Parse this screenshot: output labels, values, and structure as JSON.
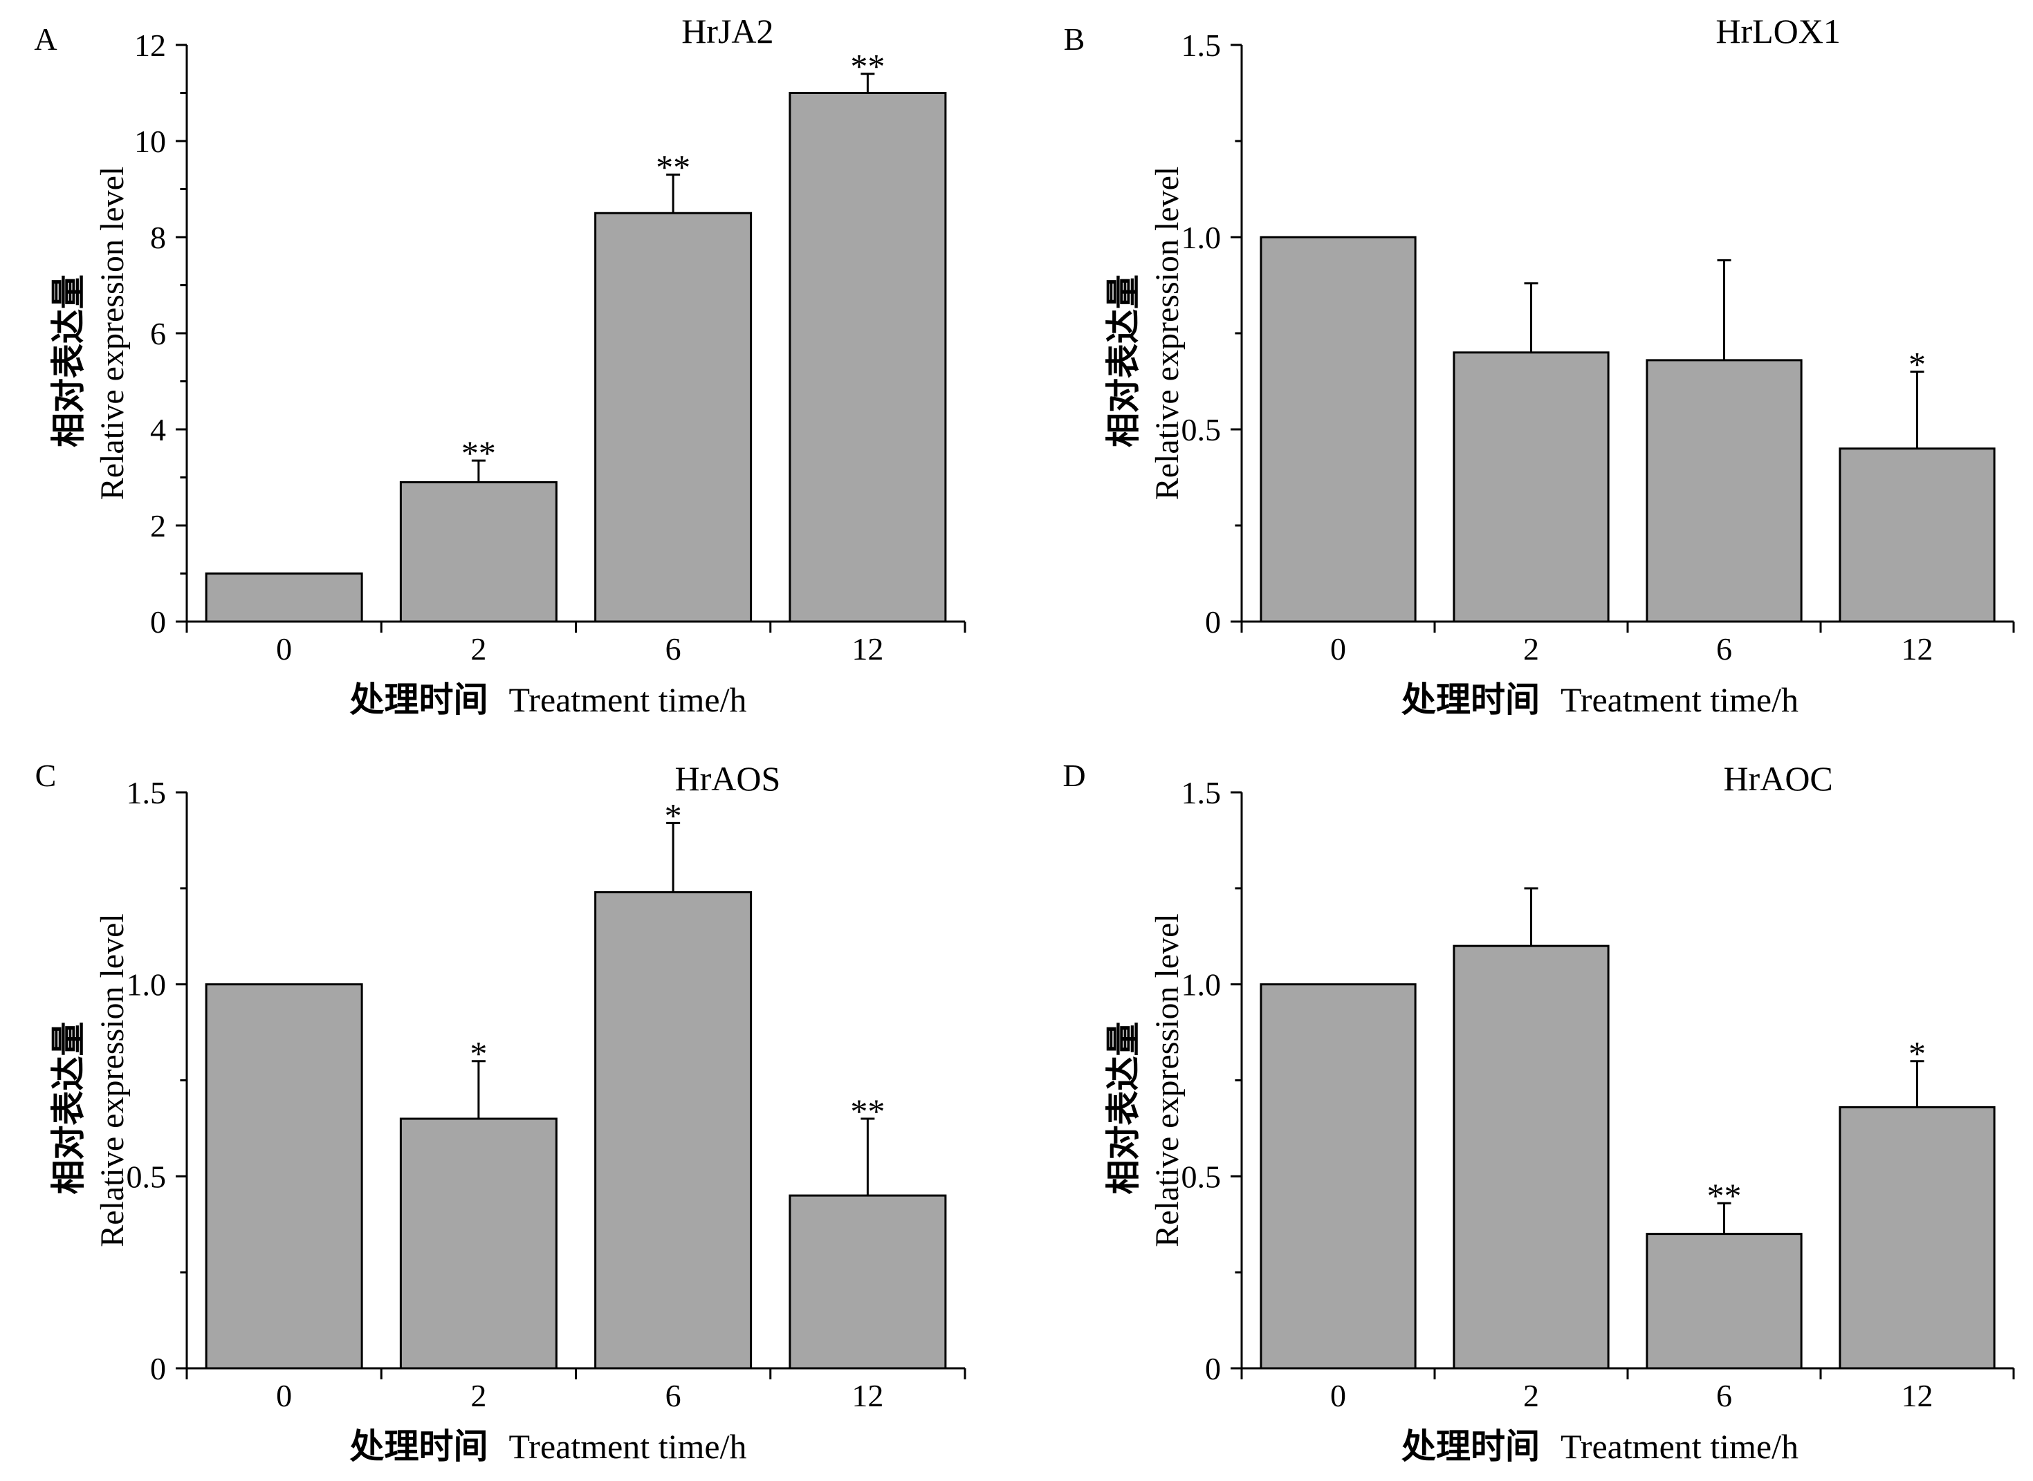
{
  "figure": {
    "bar_color": "#a6a6a6",
    "edge_color": "#000000",
    "xlabel_cn": "处理时间",
    "xlabel_en": "Treatment time/h",
    "ylabel_cn": "相对表达量",
    "ylabel_en": "Relative expression level"
  },
  "chart_data": [
    {
      "type": "bar",
      "panel_label": "A",
      "title": "HrJA2",
      "categories": [
        "0",
        "2",
        "6",
        "12"
      ],
      "values": [
        1.0,
        2.9,
        8.5,
        11.0
      ],
      "errors": [
        0,
        0.45,
        0.8,
        0.4
      ],
      "significance": [
        "",
        "**",
        "**",
        "**"
      ],
      "ylim": [
        0,
        12
      ],
      "yticks": [
        0,
        2,
        4,
        6,
        8,
        10,
        12
      ],
      "ytick_labels": [
        "0",
        "2",
        "4",
        "6",
        "8",
        "10",
        "12"
      ],
      "ylabel": "相对表达量 Relative expression level",
      "xlabel": "处理时间 Treatment time/h"
    },
    {
      "type": "bar",
      "panel_label": "B",
      "title": "HrLOX1",
      "categories": [
        "0",
        "2",
        "6",
        "12"
      ],
      "values": [
        1.0,
        0.7,
        0.68,
        0.45
      ],
      "errors": [
        0,
        0.18,
        0.26,
        0.2
      ],
      "significance": [
        "",
        "",
        "",
        "*"
      ],
      "ylim": [
        0,
        1.5
      ],
      "yticks": [
        0,
        0.5,
        1.0,
        1.5
      ],
      "ytick_labels": [
        "0",
        "0.5",
        "1.0",
        "1.5"
      ],
      "ylabel": "相对表达量 Relative expression level",
      "xlabel": "处理时间 Treatment time/h"
    },
    {
      "type": "bar",
      "panel_label": "C",
      "title": "HrAOS",
      "categories": [
        "0",
        "2",
        "6",
        "12"
      ],
      "values": [
        1.0,
        0.65,
        1.24,
        0.45
      ],
      "errors": [
        0,
        0.15,
        0.18,
        0.2
      ],
      "significance": [
        "",
        "*",
        "*",
        "**"
      ],
      "ylim": [
        0,
        1.5
      ],
      "yticks": [
        0,
        0.5,
        1.0,
        1.5
      ],
      "ytick_labels": [
        "0",
        "0.5",
        "1.0",
        "1.5"
      ],
      "ylabel": "相对表达量 Relative expression level",
      "xlabel": "处理时间 Treatment time/h"
    },
    {
      "type": "bar",
      "panel_label": "D",
      "title": "HrAOC",
      "categories": [
        "0",
        "2",
        "6",
        "12"
      ],
      "values": [
        1.0,
        1.1,
        0.35,
        0.68
      ],
      "errors": [
        0,
        0.15,
        0.08,
        0.12
      ],
      "significance": [
        "",
        "",
        "**",
        "*"
      ],
      "ylim": [
        0,
        1.5
      ],
      "yticks": [
        0,
        0.5,
        1.0,
        1.5
      ],
      "ytick_labels": [
        "0",
        "0.5",
        "1.0",
        "1.5"
      ],
      "ylabel": "相对表达量 Relative expression level",
      "xlabel": "处理时间 Treatment time/h"
    }
  ]
}
